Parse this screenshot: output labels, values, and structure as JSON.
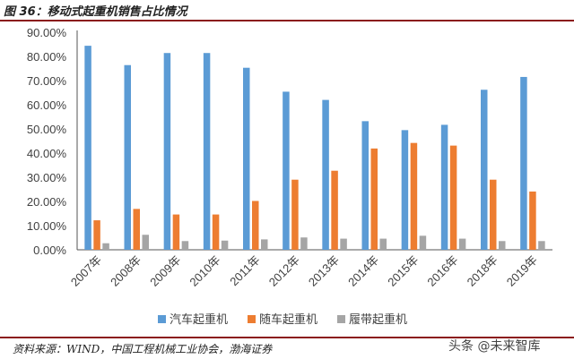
{
  "title": "图 36：移动式起重机销售占比情况",
  "source": "资料来源：WIND，中国工程机械工业协会，渤海证券",
  "watermark": "头条 @未来智库",
  "chart_data": {
    "type": "bar",
    "categories": [
      "2007年",
      "2008年",
      "2009年",
      "2010年",
      "2011年",
      "2012年",
      "2013年",
      "2014年",
      "2015年",
      "2016年",
      "2018年",
      "2019年"
    ],
    "series": [
      {
        "name": "汽车起重机",
        "color": "#5b9bd5",
        "values": [
          84.4,
          76.4,
          81.4,
          81.4,
          75.3,
          65.4,
          62.0,
          53.2,
          49.5,
          51.7,
          66.2,
          71.5
        ]
      },
      {
        "name": "随车起重机",
        "color": "#ed7d31",
        "values": [
          12.2,
          16.9,
          14.6,
          14.6,
          20.2,
          29.0,
          32.7,
          41.9,
          44.2,
          43.1,
          29.0,
          24.1
        ]
      },
      {
        "name": "履带起重机",
        "color": "#a5a5a5",
        "values": [
          2.7,
          6.2,
          3.6,
          3.8,
          4.3,
          5.1,
          4.6,
          4.6,
          5.8,
          4.6,
          3.6,
          3.6
        ]
      }
    ],
    "yticks": [
      "0.00%",
      "10.00%",
      "20.00%",
      "30.00%",
      "40.00%",
      "50.00%",
      "60.00%",
      "70.00%",
      "80.00%",
      "90.00%"
    ],
    "ylim": [
      0,
      90
    ],
    "xlabel": "",
    "ylabel": "",
    "grid": false,
    "legend": "bottom"
  }
}
